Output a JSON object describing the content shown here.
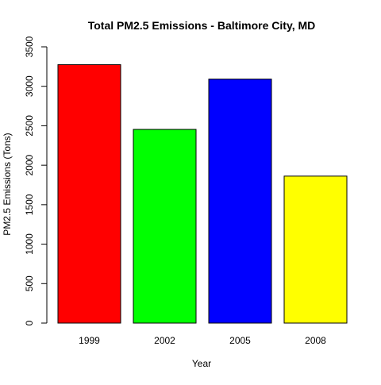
{
  "chart_data": {
    "type": "bar",
    "title": "Total PM2.5 Emissions - Baltimore City, MD",
    "xlabel": "Year",
    "ylabel": "PM2.5 Emissions (Tons)",
    "categories": [
      "1999",
      "2002",
      "2005",
      "2008"
    ],
    "values": [
      3274,
      2454,
      3091,
      1862
    ],
    "colors": [
      "#ff0000",
      "#00ff00",
      "#0000ff",
      "#ffff00"
    ],
    "ylim": [
      0,
      3500
    ],
    "yticks": [
      0,
      500,
      1000,
      1500,
      2000,
      2500,
      3000,
      3500
    ],
    "grid": false,
    "legend": "none"
  }
}
